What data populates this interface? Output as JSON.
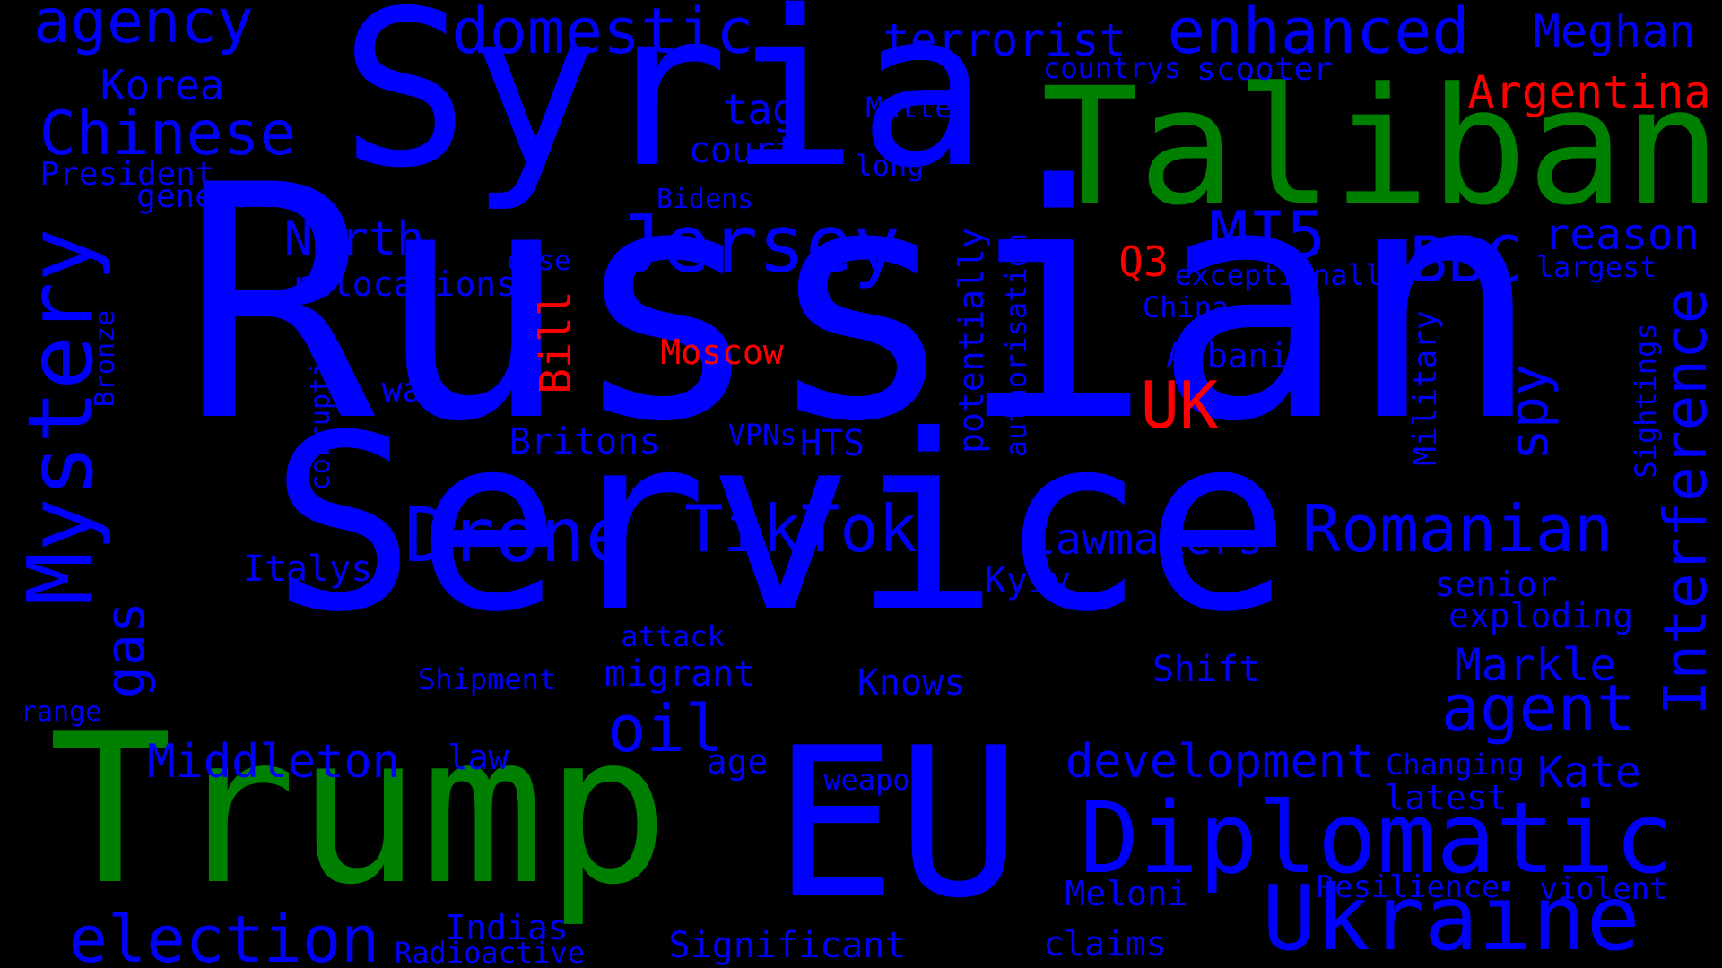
{
  "colors": {
    "background": "#000000",
    "primary": "#0000ff",
    "secondary": "#008000",
    "accent": "#ff0000"
  },
  "words": {
    "russian": "Russian",
    "service": "Service",
    "syria": "Syria",
    "trump": "Trump",
    "eu": "EU",
    "taliban": "Taliban",
    "diplomatic": "Diplomatic",
    "ukraine": "Ukraine",
    "mystery": "Mystery",
    "interference": "Interference",
    "jersey": "Jersey",
    "drone": "Drone",
    "tiktok": "TikTok",
    "romanian": "Romanian",
    "election": "election",
    "domestic": "domestic",
    "enhanced": "enhanced",
    "agency": "agency",
    "chinese": "Chinese",
    "agent": "agent",
    "uk": "UK",
    "mi5": "MI5",
    "bbc": "BBC",
    "north": "North",
    "oil": "oil",
    "middleton": "Middleton",
    "development": "development",
    "markle": "Markle",
    "gas": "gas",
    "spy": "spy",
    "argentina": "Argentina",
    "meghan": "Meghan",
    "terrorist": "terrorist",
    "korea": "Korea",
    "lawmakers": "lawmakers",
    "kate": "Kate",
    "reason": "reason",
    "tag": "tag",
    "court": "court",
    "q3": "Q3",
    "bill": "Bill",
    "moscow": "Moscow",
    "president": "President",
    "general": "general",
    "relocations": "relocations",
    "war": "war",
    "britons": "Britons",
    "hts": "HTS",
    "vpns": "VPNs",
    "italys": "Italys",
    "kyiv": "Kyiv",
    "senior": "senior",
    "exploding": "exploding",
    "attack": "attack",
    "shipment": "Shipment",
    "migrant": "migrant",
    "knows": "Knows",
    "shift": "Shift",
    "law": "law",
    "age": "age",
    "weapon": "weapon",
    "changing": "Changing",
    "latest": "latest",
    "meloni": "Meloni",
    "resilience": "Resilience",
    "violent": "violent",
    "indias": "Indias",
    "radioactive": "Radioactive",
    "significant": "Significant",
    "claims": "claims",
    "range": "range",
    "albania": "Albania",
    "china": "China",
    "exceptionally": "exceptionally",
    "largest": "largest",
    "case": "case",
    "bidens": "Bidens",
    "long": "long",
    "matter": "Matter",
    "countrys": "countrys",
    "scooter": "scooter",
    "military": "Military",
    "sightings": "Sightings",
    "potentially": "potentially",
    "authorisation": "authorisation",
    "corruption": "corruption",
    "bronze": "Bronze"
  }
}
